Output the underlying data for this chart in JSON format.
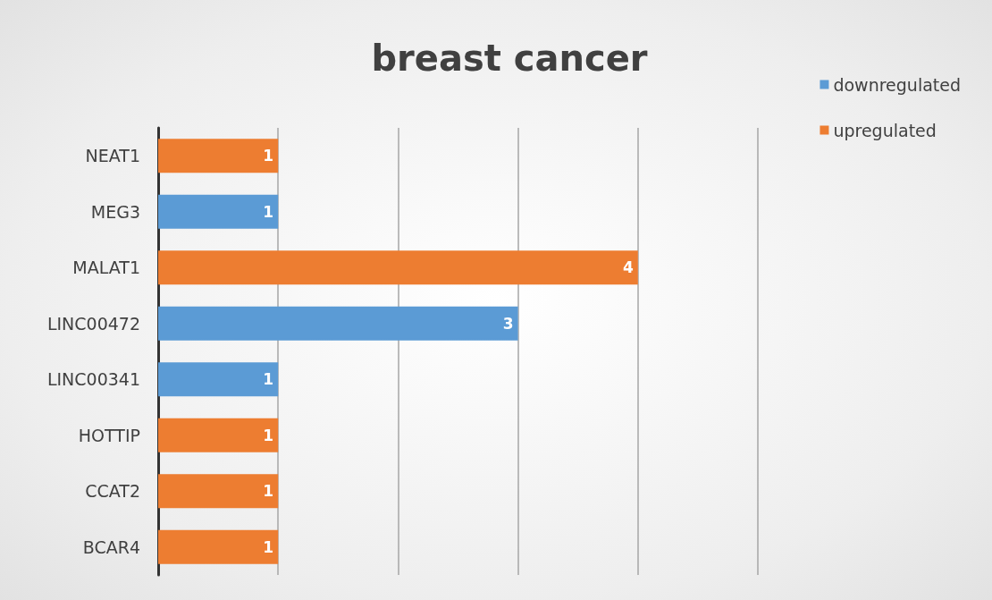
{
  "chart_data": {
    "type": "bar",
    "title": "breast cancer",
    "orientation": "horizontal",
    "stacked": true,
    "categories": [
      "NEAT1",
      "MEG3",
      "MALAT1",
      "LINC00472",
      "LINC00341",
      "HOTTIP",
      "CCAT2",
      "BCAR4"
    ],
    "series": [
      {
        "name": "downregulated",
        "color": "#5b9bd5",
        "values": [
          null,
          1,
          null,
          3,
          1,
          null,
          null,
          null
        ]
      },
      {
        "name": "upregulated",
        "color": "#ed7d31",
        "values": [
          1,
          null,
          4,
          null,
          null,
          1,
          1,
          1
        ]
      }
    ],
    "xlim": [
      0,
      5
    ],
    "xticks": [
      {
        "value": 0,
        "label": null
      },
      {
        "value": 1,
        "label": null
      },
      {
        "value": 2,
        "label": null
      },
      {
        "value": 3,
        "label": null
      },
      {
        "value": 4,
        "label": null
      },
      {
        "value": 5,
        "label": null
      }
    ],
    "tick_labels": "y",
    "grid": "x",
    "legend": "top right",
    "data_labels": true
  }
}
